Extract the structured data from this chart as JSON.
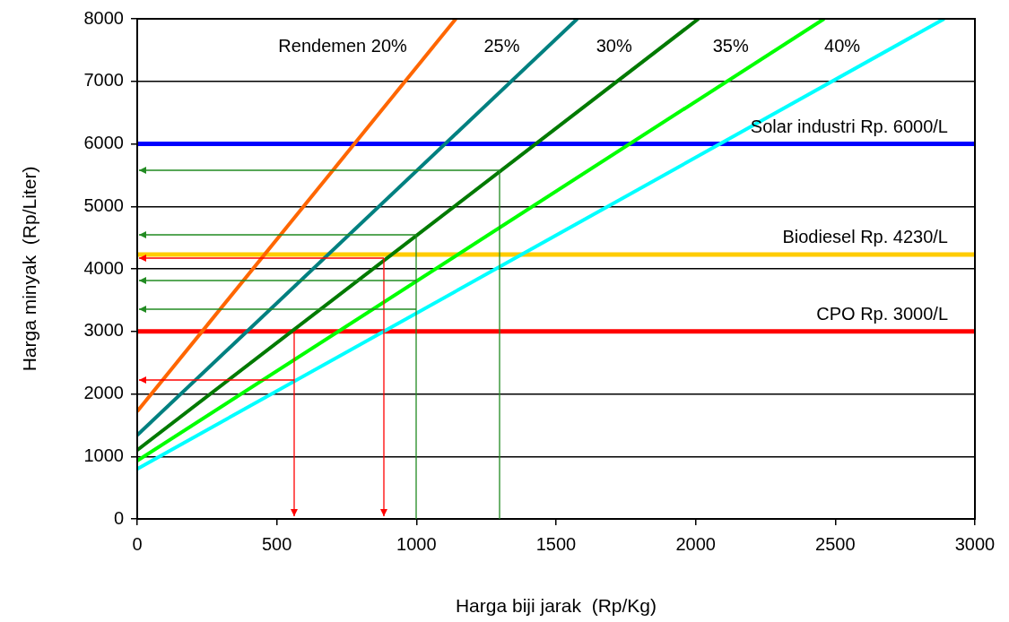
{
  "chart_data": {
    "type": "line",
    "xlabel": "Harga biji jarak  (Rp/Kg)",
    "ylabel": "Harga minyak  (Rp/Liter)",
    "xlim": [
      0,
      3000
    ],
    "xticks": [
      0,
      500,
      1000,
      1500,
      2000,
      2500,
      3000
    ],
    "ylim": [
      0,
      8000
    ],
    "yticks": [
      0,
      1000,
      2000,
      3000,
      4000,
      5000,
      6000,
      7000,
      8000
    ],
    "grid": "y",
    "legend": false,
    "marker": "none",
    "series": [
      {
        "name": "Rendemen 20%",
        "color": "#ff6600",
        "x": [
          0,
          1141
        ],
        "values": [
          1720,
          8000
        ]
      },
      {
        "name": "25%",
        "color": "#008080",
        "x": [
          0,
          1576
        ],
        "values": [
          1340,
          8000
        ]
      },
      {
        "name": "30%",
        "color": "#007a00",
        "x": [
          0,
          2010
        ],
        "values": [
          1100,
          8000
        ]
      },
      {
        "name": "35%",
        "color": "#00ff00",
        "x": [
          0,
          2460
        ],
        "values": [
          930,
          8000
        ]
      },
      {
        "name": "40%",
        "color": "#00ffff",
        "x": [
          0,
          2890
        ],
        "values": [
          800,
          8000
        ]
      }
    ],
    "ref_lines": [
      {
        "axis": "y",
        "value": 6000,
        "label": "Solar industri Rp. 6000/L",
        "color": "#0000ff"
      },
      {
        "axis": "y",
        "value": 4230,
        "label": "Biodiesel Rp. 4230/L",
        "color": "#ffcc00"
      },
      {
        "axis": "y",
        "value": 3000,
        "label": "CPO Rp. 3000/L",
        "color": "#ff0000"
      }
    ]
  }
}
